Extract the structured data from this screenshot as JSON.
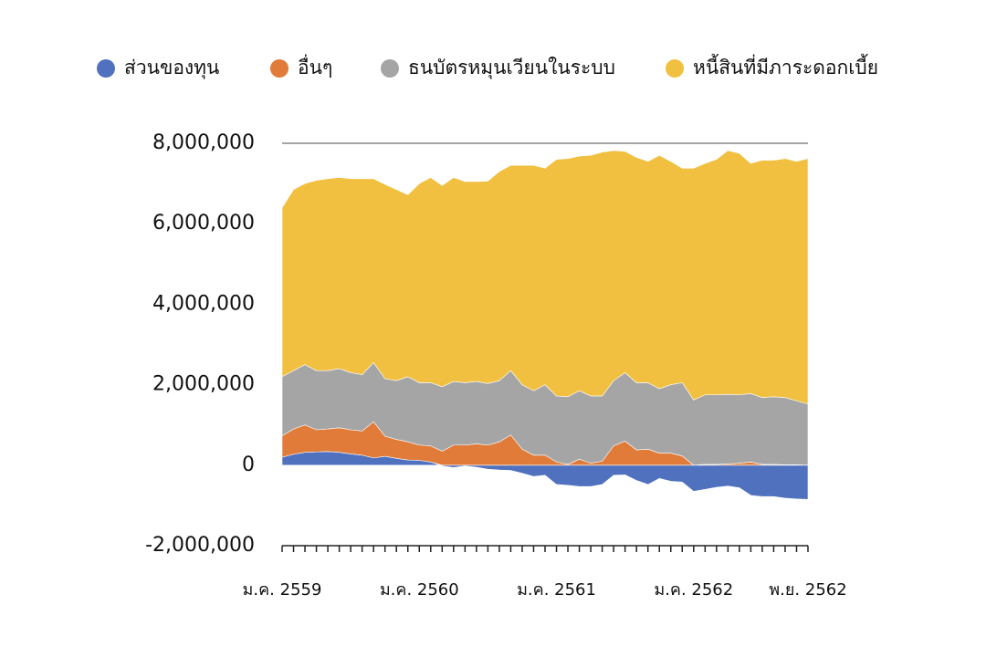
{
  "chart_data": {
    "type": "stacked-area",
    "categories": [
      "ม.ค. 2559",
      null,
      null,
      null,
      null,
      null,
      null,
      null,
      null,
      null,
      null,
      null,
      "ม.ค. 2560",
      null,
      null,
      null,
      null,
      null,
      null,
      null,
      null,
      null,
      null,
      null,
      "ม.ค. 2561",
      null,
      null,
      null,
      null,
      null,
      null,
      null,
      null,
      null,
      null,
      null,
      "ม.ค. 2562",
      null,
      null,
      null,
      null,
      null,
      null,
      null,
      null,
      null,
      "พ.ย. 2562"
    ],
    "series": [
      {
        "name": "ส่วนของทุน",
        "color": "#4f71be",
        "values": [
          200000,
          270000,
          320000,
          330000,
          340000,
          320000,
          280000,
          250000,
          180000,
          220000,
          170000,
          130000,
          120000,
          80000,
          -20000,
          -60000,
          -20000,
          -50000,
          -100000,
          -120000,
          -130000,
          -200000,
          -280000,
          -250000,
          -480000,
          -500000,
          -530000,
          -530000,
          -480000,
          -250000,
          -240000,
          -380000,
          -480000,
          -330000,
          -400000,
          -420000,
          -650000,
          -600000,
          -550000,
          -520000,
          -560000,
          -750000,
          -780000,
          -780000,
          -820000,
          -840000,
          -850000
        ]
      },
      {
        "name": "อื่นๆ",
        "color": "#e07b39",
        "values": [
          530000,
          630000,
          680000,
          550000,
          560000,
          610000,
          600000,
          600000,
          900000,
          500000,
          470000,
          450000,
          380000,
          400000,
          350000,
          500000,
          500000,
          530000,
          500000,
          580000,
          750000,
          400000,
          250000,
          250000,
          80000,
          20000,
          150000,
          50000,
          100000,
          480000,
          600000,
          380000,
          400000,
          300000,
          300000,
          230000,
          0,
          20000,
          20000,
          30000,
          50000,
          80000,
          20000,
          20000,
          10000,
          10000,
          0
        ]
      },
      {
        "name": "ธนบัตรหมุนเวียนในระบบ",
        "color": "#a5a5a5",
        "values": [
          1470000,
          1450000,
          1500000,
          1470000,
          1450000,
          1470000,
          1420000,
          1400000,
          1470000,
          1430000,
          1460000,
          1620000,
          1550000,
          1570000,
          1600000,
          1580000,
          1550000,
          1550000,
          1530000,
          1520000,
          1600000,
          1600000,
          1600000,
          1750000,
          1640000,
          1680000,
          1700000,
          1670000,
          1620000,
          1620000,
          1700000,
          1670000,
          1650000,
          1600000,
          1700000,
          1820000,
          1620000,
          1730000,
          1730000,
          1730000,
          1700000,
          1700000,
          1660000,
          1680000,
          1670000,
          1590000,
          1520000
        ]
      },
      {
        "name": "หนี้สินที่มีภาระดอกเบี้ย",
        "color": "#f1c040",
        "values": [
          4200000,
          4500000,
          4500000,
          4730000,
          4770000,
          4750000,
          4820000,
          4870000,
          4570000,
          4830000,
          4750000,
          4520000,
          4950000,
          5100000,
          5000000,
          5070000,
          5000000,
          4970000,
          5030000,
          5200000,
          5100000,
          5450000,
          5600000,
          5380000,
          5880000,
          5920000,
          5830000,
          5980000,
          6060000,
          5720000,
          5500000,
          5600000,
          5500000,
          5800000,
          5550000,
          5330000,
          5760000,
          5750000,
          5850000,
          6060000,
          6000000,
          5720000,
          5900000,
          5880000,
          5940000,
          5950000,
          6100000
        ]
      }
    ],
    "ylim": [
      -2000000,
      8000000
    ],
    "yticks": [
      {
        "value": -2000000,
        "label": "-2,000,000"
      },
      0,
      {
        "value": 2000000,
        "label": "2,000,000"
      },
      {
        "value": 4000000,
        "label": "4,000,000"
      },
      {
        "value": 6000000,
        "label": "6,000,000"
      },
      {
        "value": 8000000,
        "label": "8,000,000"
      }
    ],
    "grid": false,
    "legend": "top"
  }
}
